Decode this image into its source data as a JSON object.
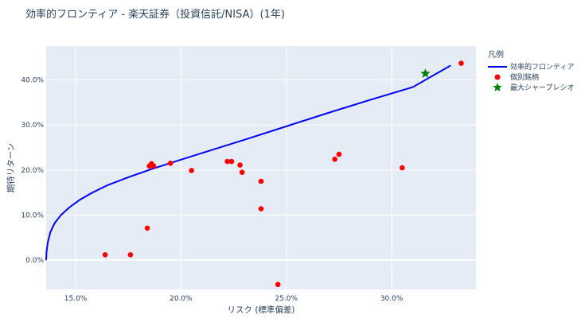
{
  "chart_data": {
    "type": "scatter",
    "title": "効率的フロンティア - 楽天証券（投資信託/NISA）(1年)",
    "xlabel": "リスク (標準偏差)",
    "ylabel": "期待リターン",
    "xlim": [
      0.136,
      0.34
    ],
    "ylim": [
      -0.065,
      0.475
    ],
    "xticks": [
      0.15,
      0.2,
      0.25,
      0.3
    ],
    "xtick_labels": [
      "15.0%",
      "20.0%",
      "25.0%",
      "30.0%"
    ],
    "yticks": [
      0.0,
      0.1,
      0.2,
      0.3,
      0.4
    ],
    "ytick_labels": [
      "0.0%",
      "10.0%",
      "20.0%",
      "30.0%",
      "40.0%"
    ],
    "grid": true,
    "legend": {
      "title": "凡例",
      "placement": "right",
      "entries": [
        "効率的フロンティア",
        "個別銘柄",
        "最大シャープレシオ"
      ]
    },
    "colors": {
      "frontier": "#0000ff",
      "stocks": "#ff0000",
      "max_sharpe": "#008000",
      "plot_bg": "#e5ecf6",
      "grid": "#ffffff"
    },
    "series": [
      {
        "name": "効率的フロンティア",
        "mode": "line",
        "x": [
          0.136,
          0.1362,
          0.1368,
          0.138,
          0.14,
          0.143,
          0.147,
          0.152,
          0.158,
          0.165,
          0.175,
          0.186,
          0.2,
          0.215,
          0.232,
          0.25,
          0.27,
          0.29,
          0.31,
          0.328
        ],
        "y": [
          0.0,
          0.02,
          0.04,
          0.062,
          0.082,
          0.1,
          0.117,
          0.134,
          0.15,
          0.166,
          0.184,
          0.202,
          0.223,
          0.245,
          0.27,
          0.297,
          0.327,
          0.356,
          0.384,
          0.432
        ]
      },
      {
        "name": "個別銘柄",
        "mode": "markers",
        "x": [
          0.164,
          0.176,
          0.184,
          0.185,
          0.186,
          0.187,
          0.195,
          0.205,
          0.222,
          0.224,
          0.228,
          0.229,
          0.238,
          0.238,
          0.246,
          0.273,
          0.275,
          0.305,
          0.333
        ],
        "y": [
          0.012,
          0.012,
          0.071,
          0.209,
          0.214,
          0.209,
          0.215,
          0.199,
          0.219,
          0.219,
          0.211,
          0.195,
          0.175,
          0.114,
          -0.054,
          0.224,
          0.235,
          0.205,
          0.437
        ]
      },
      {
        "name": "最大シャープレシオ",
        "mode": "star",
        "x": [
          0.316
        ],
        "y": [
          0.414
        ]
      }
    ]
  }
}
